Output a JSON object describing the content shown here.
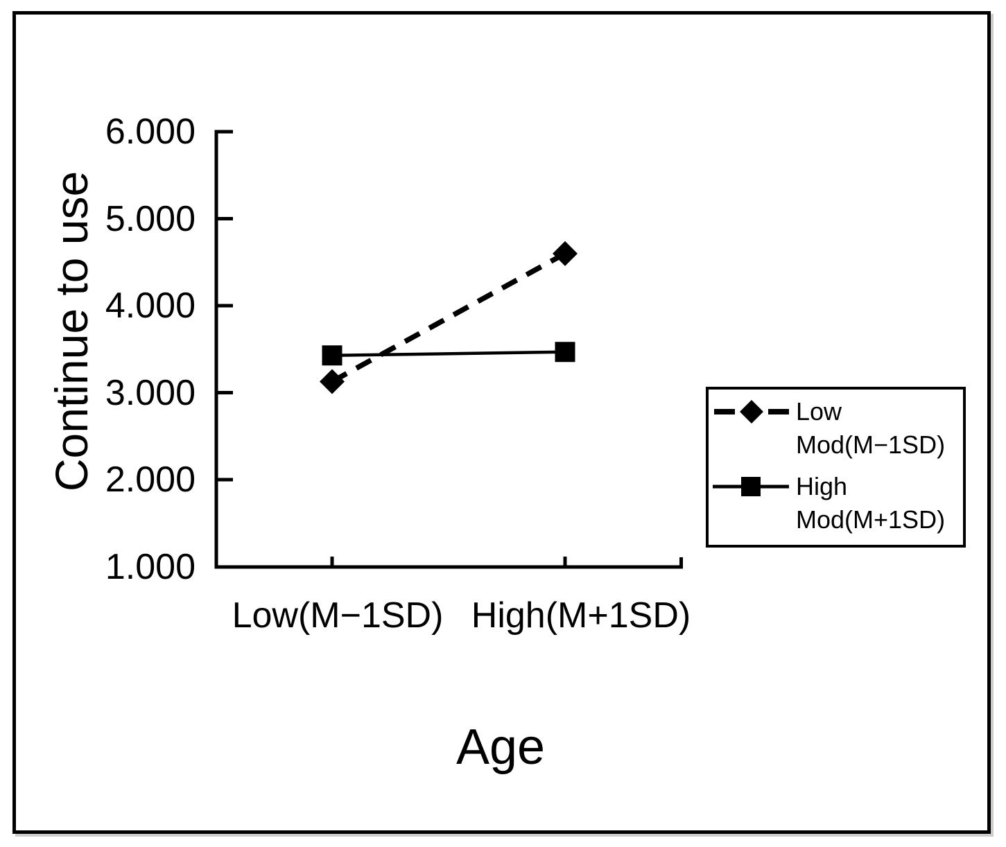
{
  "chart_data": {
    "type": "line",
    "xlabel": "Age",
    "ylabel": "Continue to use",
    "ylim": [
      1,
      6
    ],
    "ytick_labels": [
      "6.000",
      "5.000",
      "4.000",
      "3.000",
      "2.000",
      "1.000"
    ],
    "ytick_values": [
      6,
      5,
      4,
      3,
      2,
      1
    ],
    "categories": [
      "Low(M−1SD)",
      "High(M+1SD)"
    ],
    "series": [
      {
        "name": "Low Mod(M−1SD)",
        "values": [
          3.13,
          4.6
        ],
        "line_style": "dashed",
        "marker": "diamond",
        "color": "#000000"
      },
      {
        "name": "High Mod(M+1SD)",
        "values": [
          3.43,
          3.47
        ],
        "line_style": "solid",
        "marker": "square",
        "color": "#000000"
      }
    ],
    "legend": {
      "position": "right",
      "entries": [
        {
          "line1": "Low",
          "line2": "Mod(M−1SD)",
          "marker": "diamond",
          "line_style": "dashed"
        },
        {
          "line1": "High",
          "line2": "Mod(M+1SD)",
          "marker": "square",
          "line_style": "solid"
        }
      ]
    },
    "grid": false,
    "axis_color": "#000000",
    "background_color": "#ffffff"
  }
}
